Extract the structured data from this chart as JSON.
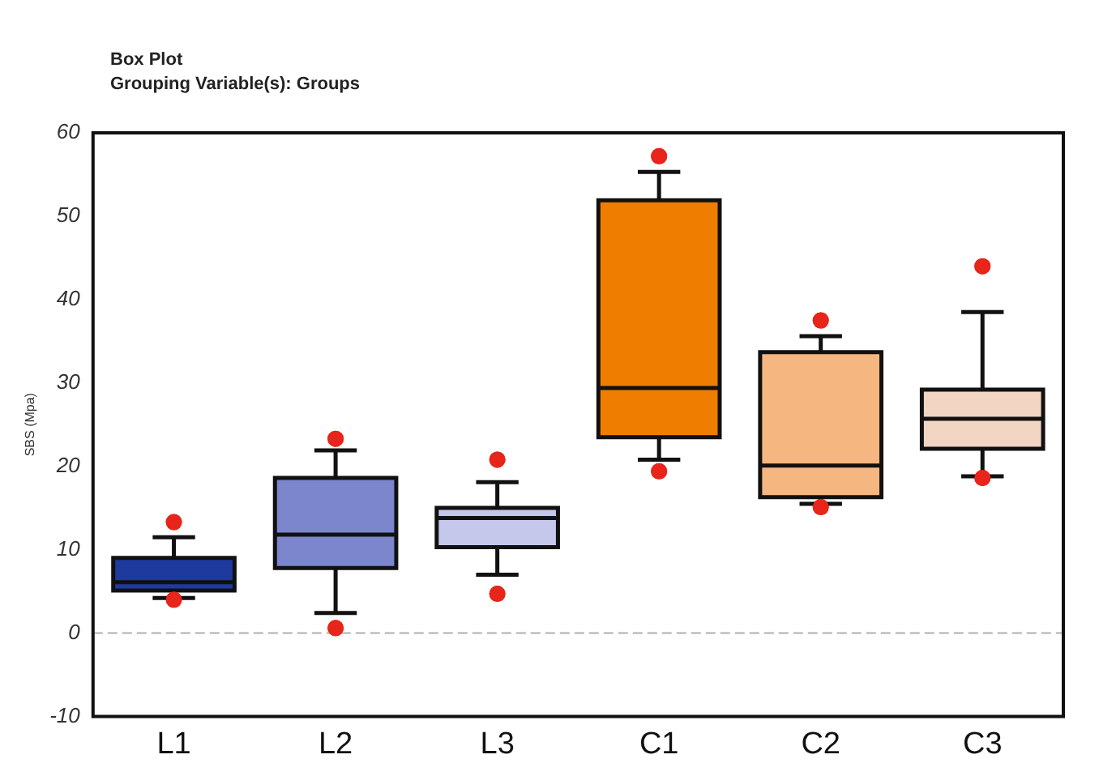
{
  "chart_data": {
    "type": "box",
    "title": "Box Plot",
    "subtitle": "Grouping Variable(s): Groups",
    "ylabel": "SBS (Mpa)",
    "categories": [
      "L1",
      "L2",
      "L3",
      "C1",
      "C2",
      "C3"
    ],
    "colors": [
      "#1f3a9e",
      "#7b86cc",
      "#c5c8ea",
      "#ef7d00",
      "#f6b67f",
      "#f3d5c4"
    ],
    "boxes": [
      {
        "low": 4.2,
        "q1": 5.1,
        "median": 6.1,
        "q3": 9.0,
        "high": 11.5,
        "outliers": [
          13.3,
          4.0
        ]
      },
      {
        "low": 2.4,
        "q1": 7.8,
        "median": 11.8,
        "q3": 18.6,
        "high": 21.9,
        "outliers": [
          23.3,
          0.6
        ]
      },
      {
        "low": 7.0,
        "q1": 10.3,
        "median": 13.8,
        "q3": 15.0,
        "high": 18.1,
        "outliers": [
          20.8,
          4.7
        ]
      },
      {
        "low": 20.8,
        "q1": 23.5,
        "median": 29.4,
        "q3": 51.9,
        "high": 55.3,
        "outliers": [
          57.2,
          19.4
        ]
      },
      {
        "low": 15.5,
        "q1": 16.3,
        "median": 20.1,
        "q3": 33.7,
        "high": 35.6,
        "outliers": [
          37.5,
          15.1
        ]
      },
      {
        "low": 18.8,
        "q1": 22.1,
        "median": 25.7,
        "q3": 29.2,
        "high": 38.5,
        "outliers": [
          44.0,
          18.6
        ]
      }
    ],
    "ylim": [
      -10,
      60
    ],
    "yticks": [
      -10,
      0,
      10,
      20,
      30,
      40,
      50,
      60
    ],
    "ref_lines": [
      {
        "axis": "y",
        "value": 0,
        "color": "#b0b0b0",
        "line_style": "dashed"
      }
    ],
    "grid": false,
    "legend": false
  }
}
